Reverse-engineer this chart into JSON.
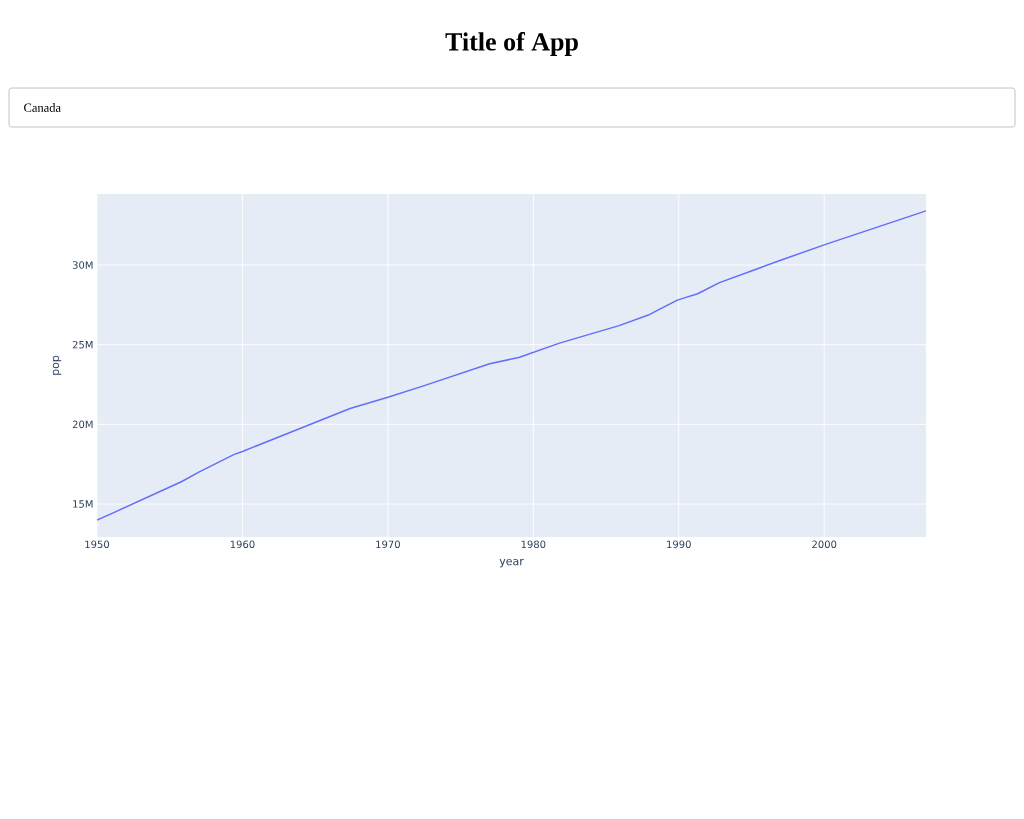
{
  "chart_data": {
    "type": "line",
    "title": "Title of App",
    "subtitle": "Canada",
    "xlabel": "year",
    "ylabel": "pop",
    "x": [
      1950,
      1951,
      1955.8,
      1957,
      1959.4,
      1960,
      1967.4,
      1970,
      1972.4,
      1977,
      1979,
      1981.8,
      1985.9,
      1988,
      1989.9,
      1991.3,
      1992.8,
      1997,
      2000.1,
      2007
    ],
    "series": [
      {
        "color": "#636efa",
        "values": [
          14000000,
          14400000,
          16400000,
          17000000,
          18100000,
          18300000,
          21000000,
          21700000,
          22400000,
          23800000,
          24200000,
          25100000,
          26200000,
          26900000,
          27800000,
          28200000,
          28900000,
          30300000,
          31300000,
          33400000
        ]
      }
    ],
    "xlim": [
      1950,
      2007
    ],
    "xticks": [
      1950,
      1960,
      1970,
      1980,
      1990,
      2000
    ],
    "ylim": [
      12930000,
      34460000
    ],
    "yticks": [
      {
        "value": 15000000,
        "label": "15M"
      },
      {
        "value": 20000000,
        "label": "20M"
      },
      {
        "value": 25000000,
        "label": "25M"
      },
      {
        "value": 30000000,
        "label": "30M"
      }
    ],
    "grid": true,
    "marker": "none",
    "line_style": "solid"
  }
}
